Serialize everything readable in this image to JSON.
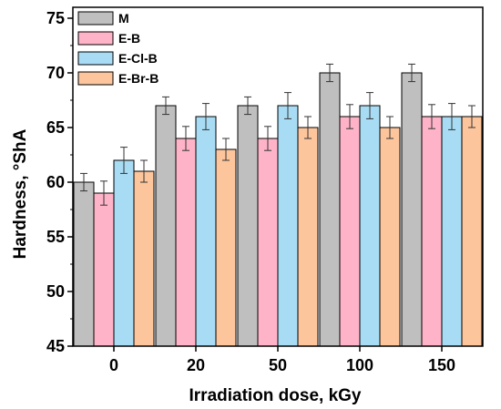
{
  "chart_data": {
    "type": "bar",
    "title": "",
    "xlabel": "Irradiation dose, kGy",
    "ylabel": "Hardness, °ShA",
    "ylim": [
      45,
      76
    ],
    "yticks": [
      45,
      50,
      55,
      60,
      65,
      70,
      75
    ],
    "categories": [
      "0",
      "20",
      "50",
      "100",
      "150"
    ],
    "grid": false,
    "legend_position": "top-left",
    "series": [
      {
        "name": "M",
        "color": "#bfbfbf",
        "values": [
          60,
          67,
          67,
          70,
          70
        ],
        "errors": [
          0.8,
          0.8,
          0.8,
          0.8,
          0.8
        ]
      },
      {
        "name": "E-B",
        "color": "#ffb3c8",
        "values": [
          59,
          64,
          64,
          66,
          66
        ],
        "errors": [
          1.1,
          1.1,
          1.1,
          1.1,
          1.1
        ]
      },
      {
        "name": "E-Cl-B",
        "color": "#a8dcf4",
        "values": [
          62,
          66,
          67,
          67,
          66
        ],
        "errors": [
          1.2,
          1.2,
          1.2,
          1.2,
          1.2
        ]
      },
      {
        "name": "E-Br-B",
        "color": "#fcc59c",
        "values": [
          61,
          63,
          65,
          65,
          66
        ],
        "errors": [
          1.0,
          1.0,
          1.0,
          1.0,
          1.0
        ]
      }
    ]
  }
}
